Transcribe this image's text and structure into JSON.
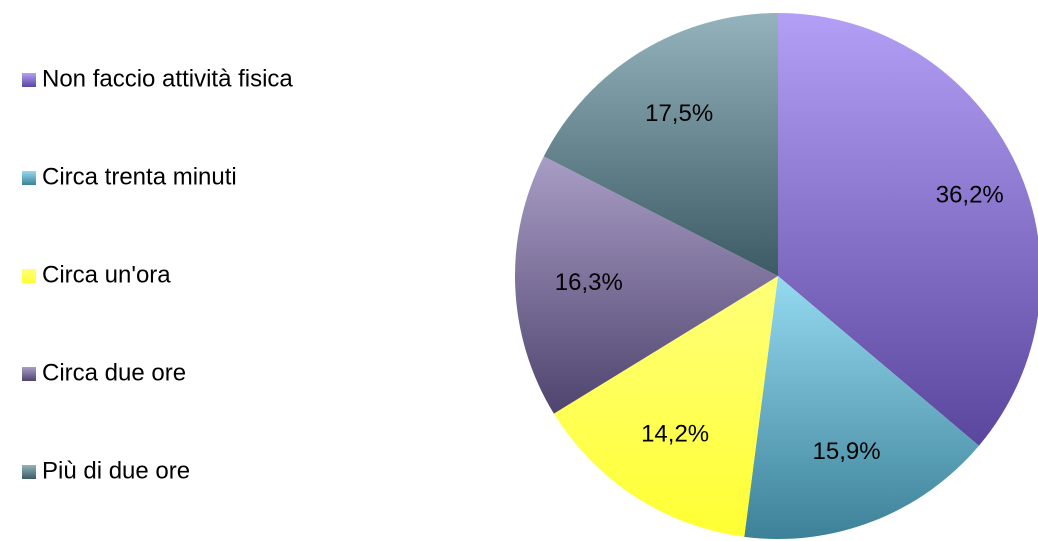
{
  "chart_data": {
    "type": "pie",
    "categories": [
      "Non faccio attività fisica",
      "Circa trenta minuti",
      "Circa un'ora",
      "Circa due ore",
      "Più di due ore"
    ],
    "values": [
      36.2,
      15.9,
      14.2,
      16.3,
      17.5
    ],
    "value_labels": [
      "36,2%",
      "15,9%",
      "14,2%",
      "16,3%",
      "17,5%"
    ],
    "colors": [
      "#8a6cf0",
      "#5cc6e8",
      "#ffff33",
      "#7a68a8",
      "#5a8a9a"
    ],
    "legend": "left"
  }
}
